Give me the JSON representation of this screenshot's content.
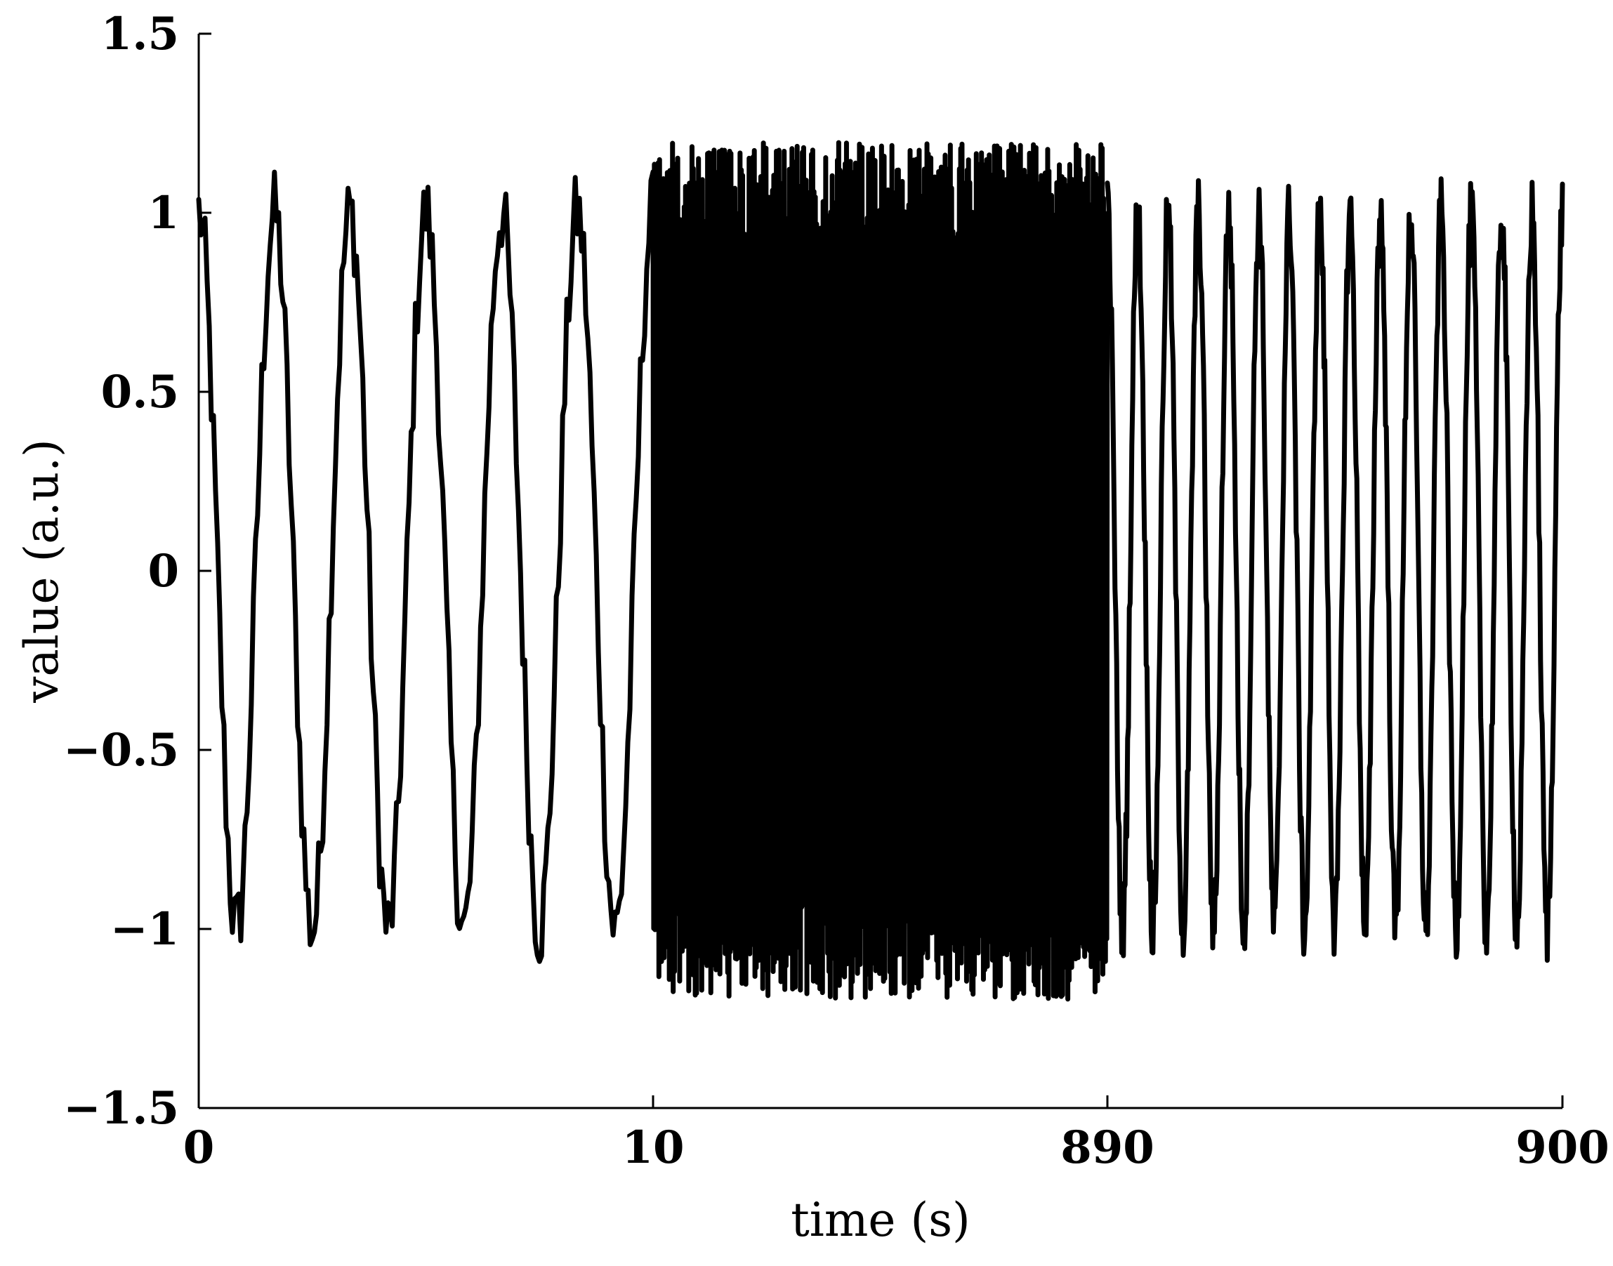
{
  "chart_data": {
    "type": "line",
    "title": "",
    "xlabel": "time (s)",
    "ylabel": "value (a.u.)",
    "ylim": [
      -1.5,
      1.5
    ],
    "x_axis": {
      "scale": "piecewise (broken axis)",
      "ticks": [
        "0",
        "10",
        "890",
        "900"
      ]
    },
    "y_axis": {
      "ticks": [
        "1.5",
        "1",
        "0.5",
        "0",
        "−0.5",
        "−1",
        "−1.5"
      ],
      "tick_values": [
        1.5,
        1,
        0.5,
        0,
        -0.5,
        -1,
        -1.5
      ]
    },
    "grid": false,
    "legend": "none",
    "series": [
      {
        "color": "#000000",
        "segments": [
          {
            "t_start": 0,
            "t_end": 10,
            "cycles": 6,
            "amplitude": 1.0,
            "noise": 0.12
          },
          {
            "t_start": 10,
            "t_end": 890,
            "cycles": 350,
            "amplitude": 1.0,
            "noise": 0.12
          },
          {
            "t_start": 890,
            "t_end": 900,
            "cycles": 15,
            "amplitude": 1.0,
            "noise": 0.1
          }
        ]
      }
    ]
  }
}
